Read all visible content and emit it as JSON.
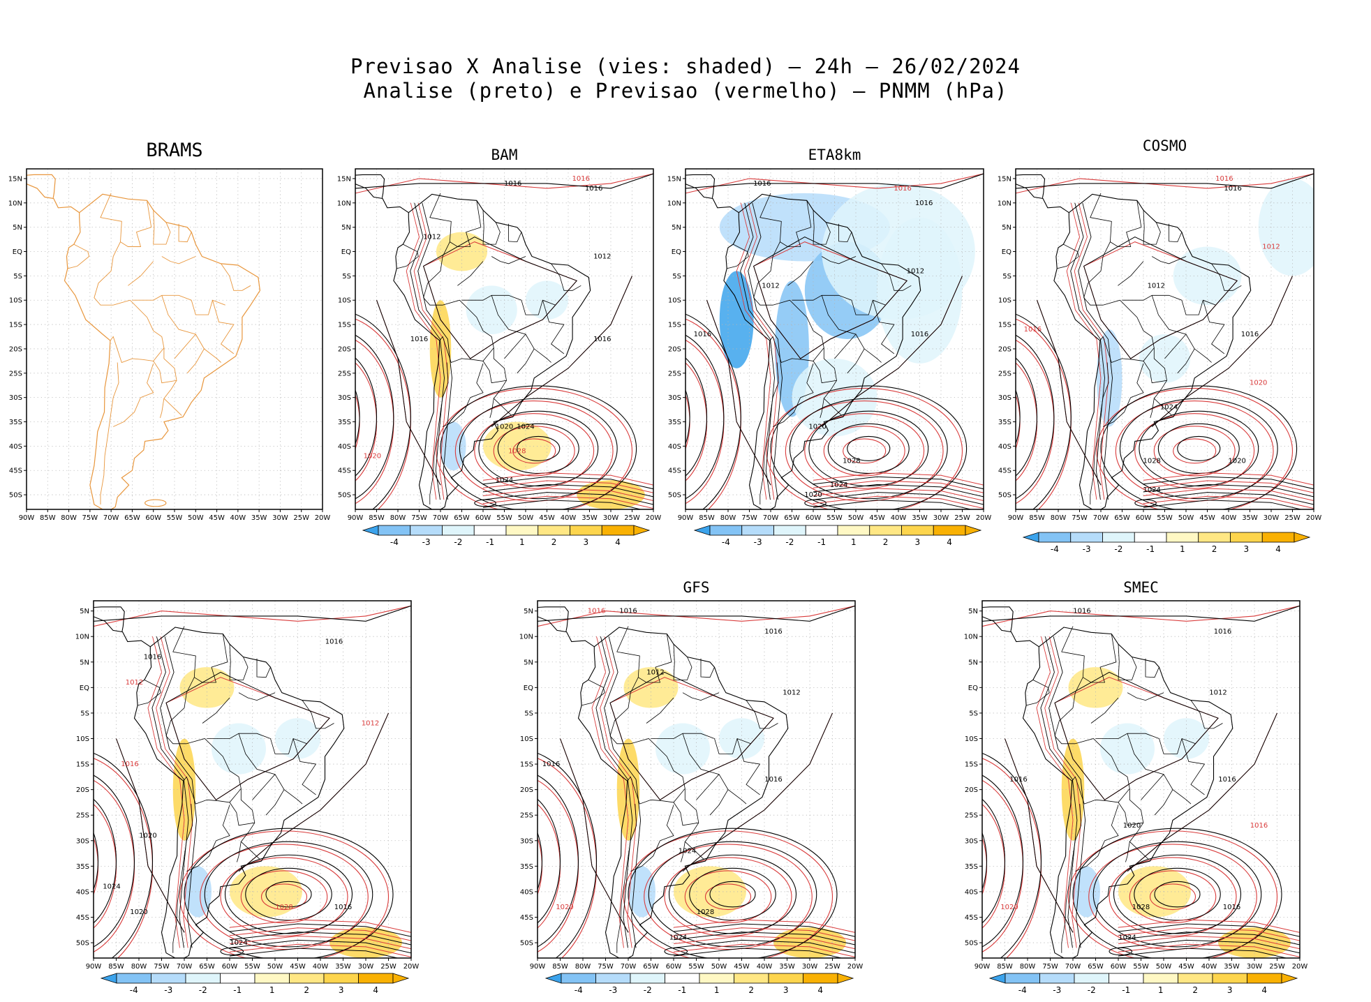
{
  "title": {
    "line1": "Previsao X Analise (vies: shaded) – 24h – 26/02/2024",
    "line2": "Analise (preto) e Previsao (vermelho) – PNMM (hPa)"
  },
  "colors": {
    "land_outline": "#e8963c",
    "analysis_contour": "#000000",
    "forecast_contour": "#d93a3a",
    "grid": "#b4b4b4",
    "bias_scale": [
      "#3ba3ec",
      "#83c3f5",
      "#b5dcfa",
      "#dff5fb",
      "#ffffff",
      "#fff8c4",
      "#ffe784",
      "#fdd54d",
      "#f9b103"
    ]
  },
  "chart_data": [
    {
      "type": "map",
      "model": "BRAMS",
      "has_colorbar": false,
      "iso_labels": []
    },
    {
      "type": "map",
      "model": "BAM",
      "has_colorbar": true,
      "iso_labels": [
        {
          "text": "1016",
          "lat": 14,
          "lon": -53,
          "color": "analysis"
        },
        {
          "text": "1016",
          "lat": 13,
          "lon": -34,
          "color": "analysis"
        },
        {
          "text": "1016",
          "lat": 15,
          "lon": -37,
          "color": "forecast"
        },
        {
          "text": "1012",
          "lat": 3,
          "lon": -72,
          "color": "analysis"
        },
        {
          "text": "1012",
          "lat": -1,
          "lon": -32,
          "color": "analysis"
        },
        {
          "text": "1016",
          "lat": -18,
          "lon": -75,
          "color": "analysis"
        },
        {
          "text": "1016",
          "lat": -18,
          "lon": -32,
          "color": "analysis"
        },
        {
          "text": "1020",
          "lat": -36,
          "lon": -55,
          "color": "analysis"
        },
        {
          "text": "1024",
          "lat": -36,
          "lon": -50,
          "color": "analysis"
        },
        {
          "text": "1028",
          "lat": -41,
          "lon": -52,
          "color": "forecast"
        },
        {
          "text": "1024",
          "lat": -47,
          "lon": -55,
          "color": "analysis"
        },
        {
          "text": "1020",
          "lat": -42,
          "lon": -86,
          "color": "forecast"
        }
      ]
    },
    {
      "type": "map",
      "model": "ETA8km",
      "has_colorbar": true,
      "iso_labels": [
        {
          "text": "1016",
          "lat": 14,
          "lon": -72,
          "color": "analysis"
        },
        {
          "text": "1016",
          "lat": 10,
          "lon": -34,
          "color": "analysis"
        },
        {
          "text": "1016",
          "lat": 13,
          "lon": -39,
          "color": "forecast"
        },
        {
          "text": "1012",
          "lat": -7,
          "lon": -70,
          "color": "analysis"
        },
        {
          "text": "1012",
          "lat": -4,
          "lon": -36,
          "color": "analysis"
        },
        {
          "text": "1016",
          "lat": -17,
          "lon": -86,
          "color": "analysis"
        },
        {
          "text": "1016",
          "lat": -17,
          "lon": -35,
          "color": "analysis"
        },
        {
          "text": "1020",
          "lat": -36,
          "lon": -59,
          "color": "analysis"
        },
        {
          "text": "1028",
          "lat": -43,
          "lon": -51,
          "color": "analysis"
        },
        {
          "text": "1024",
          "lat": -48,
          "lon": -54,
          "color": "analysis"
        },
        {
          "text": "1020",
          "lat": -50,
          "lon": -60,
          "color": "analysis"
        }
      ]
    },
    {
      "type": "map",
      "model": "COSMO",
      "has_colorbar": true,
      "iso_labels": [
        {
          "text": "1016",
          "lat": 13,
          "lon": -39,
          "color": "analysis"
        },
        {
          "text": "1016",
          "lat": 15,
          "lon": -41,
          "color": "forecast"
        },
        {
          "text": "1012",
          "lat": -7,
          "lon": -57,
          "color": "analysis"
        },
        {
          "text": "1012",
          "lat": 1,
          "lon": -30,
          "color": "forecast"
        },
        {
          "text": "1016",
          "lat": -16,
          "lon": -86,
          "color": "forecast"
        },
        {
          "text": "1016",
          "lat": -17,
          "lon": -35,
          "color": "analysis"
        },
        {
          "text": "1020",
          "lat": -27,
          "lon": -33,
          "color": "forecast"
        },
        {
          "text": "1024",
          "lat": -32,
          "lon": -54,
          "color": "analysis"
        },
        {
          "text": "1028",
          "lat": -43,
          "lon": -58,
          "color": "analysis"
        },
        {
          "text": "1020",
          "lat": -43,
          "lon": -38,
          "color": "analysis"
        },
        {
          "text": "1024",
          "lat": -49,
          "lon": -58,
          "color": "analysis"
        }
      ]
    },
    {
      "type": "map",
      "model": "",
      "has_colorbar": true,
      "iso_labels": [
        {
          "text": "1016",
          "lat": 6,
          "lon": -77,
          "color": "analysis"
        },
        {
          "text": "1016",
          "lat": 9,
          "lon": -37,
          "color": "analysis"
        },
        {
          "text": "1012",
          "lat": 1,
          "lon": -81,
          "color": "forecast"
        },
        {
          "text": "1012",
          "lat": -7,
          "lon": -29,
          "color": "forecast"
        },
        {
          "text": "1016",
          "lat": -15,
          "lon": -82,
          "color": "forecast"
        },
        {
          "text": "1020",
          "lat": -29,
          "lon": -78,
          "color": "analysis"
        },
        {
          "text": "1024",
          "lat": -39,
          "lon": -86,
          "color": "analysis"
        },
        {
          "text": "1020",
          "lat": -44,
          "lon": -80,
          "color": "analysis"
        },
        {
          "text": "1028",
          "lat": -43,
          "lon": -48,
          "color": "forecast"
        },
        {
          "text": "1024",
          "lat": -50,
          "lon": -58,
          "color": "analysis"
        },
        {
          "text": "1016",
          "lat": -43,
          "lon": -35,
          "color": "analysis"
        }
      ]
    },
    {
      "type": "map",
      "model": "GFS",
      "has_colorbar": true,
      "iso_labels": [
        {
          "text": "1016",
          "lat": 15,
          "lon": -70,
          "color": "analysis"
        },
        {
          "text": "1016",
          "lat": 15,
          "lon": -77,
          "color": "forecast"
        },
        {
          "text": "1016",
          "lat": 11,
          "lon": -38,
          "color": "analysis"
        },
        {
          "text": "1012",
          "lat": 3,
          "lon": -64,
          "color": "analysis"
        },
        {
          "text": "1012",
          "lat": -1,
          "lon": -34,
          "color": "analysis"
        },
        {
          "text": "1016",
          "lat": -15,
          "lon": -87,
          "color": "analysis"
        },
        {
          "text": "1016",
          "lat": -18,
          "lon": -38,
          "color": "analysis"
        },
        {
          "text": "1024",
          "lat": -32,
          "lon": -57,
          "color": "analysis"
        },
        {
          "text": "1028",
          "lat": -44,
          "lon": -53,
          "color": "analysis"
        },
        {
          "text": "1024",
          "lat": -49,
          "lon": -59,
          "color": "analysis"
        },
        {
          "text": "1020",
          "lat": -43,
          "lon": -84,
          "color": "forecast"
        }
      ]
    },
    {
      "type": "map",
      "model": "SMEC",
      "has_colorbar": true,
      "iso_labels": [
        {
          "text": "1016",
          "lat": 15,
          "lon": -68,
          "color": "analysis"
        },
        {
          "text": "1016",
          "lat": 11,
          "lon": -37,
          "color": "analysis"
        },
        {
          "text": "1012",
          "lat": -1,
          "lon": -38,
          "color": "analysis"
        },
        {
          "text": "1016",
          "lat": -18,
          "lon": -82,
          "color": "analysis"
        },
        {
          "text": "1016",
          "lat": -18,
          "lon": -36,
          "color": "analysis"
        },
        {
          "text": "1020",
          "lat": -27,
          "lon": -57,
          "color": "analysis"
        },
        {
          "text": "1016",
          "lat": -27,
          "lon": -29,
          "color": "forecast"
        },
        {
          "text": "1028",
          "lat": -43,
          "lon": -55,
          "color": "analysis"
        },
        {
          "text": "1024",
          "lat": -49,
          "lon": -58,
          "color": "analysis"
        },
        {
          "text": "1020",
          "lat": -43,
          "lon": -84,
          "color": "forecast"
        },
        {
          "text": "1016",
          "lat": -43,
          "lon": -35,
          "color": "analysis"
        }
      ]
    }
  ],
  "axes": {
    "lon_ticks": [
      "90W",
      "85W",
      "80W",
      "75W",
      "70W",
      "65W",
      "60W",
      "55W",
      "50W",
      "45W",
      "40W",
      "35W",
      "30W",
      "25W",
      "20W"
    ],
    "lat_ticks_top": [
      "15N",
      "10N",
      "5N",
      "EQ",
      "5S",
      "10S",
      "15S",
      "20S",
      "25S",
      "30S",
      "35S",
      "40S",
      "45S",
      "50S"
    ],
    "lat_ticks_bottom": [
      "5N",
      "10N",
      "5N",
      "EQ",
      "5S",
      "10S",
      "15S",
      "20S",
      "25S",
      "30S",
      "35S",
      "40S",
      "45S",
      "50S"
    ],
    "xlim": [
      -90,
      -20
    ],
    "ylim": [
      -53,
      17
    ]
  },
  "colorbar": {
    "labels": [
      "-4",
      "-3",
      "-2",
      "-1",
      "1",
      "2",
      "3",
      "4"
    ]
  }
}
